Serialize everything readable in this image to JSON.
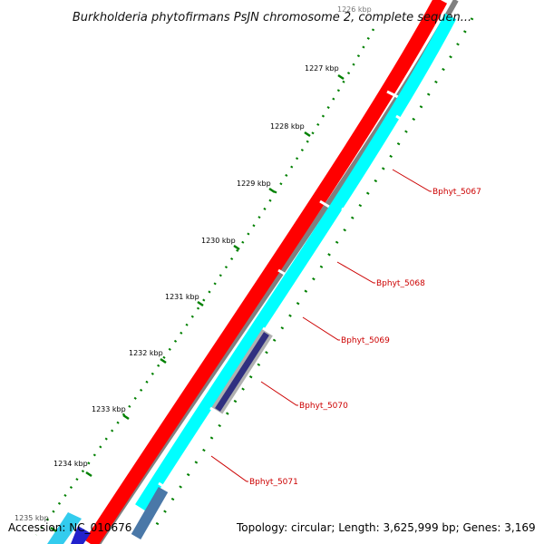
{
  "title": "Burkholderia phytofirmans PsJN chromosome 2, complete sequen...",
  "footer": {
    "accession": "Accession: NC_010676",
    "summary": "Topology: circular; Length: 3,625,999 bp; Genes: 3,169"
  },
  "ticks": [
    "1226 kbp",
    "1227 kbp",
    "1228 kbp",
    "1229 kbp",
    "1230 kbp",
    "1231 kbp",
    "1232 kbp",
    "1233 kbp",
    "1234 kbp",
    "1235 kbp"
  ],
  "gene_labels": [
    "Bphyt_5067",
    "Bphyt_5068",
    "Bphyt_5069",
    "Bphyt_5070",
    "Bphyt_5071"
  ],
  "colors": {
    "outer_ring": "#808080",
    "forward_genes": "#ff0000",
    "reverse_genes": "#00ffff",
    "grey_gene": "#b0b0b0",
    "navy_gene": "#303080",
    "tick_marks": "#008000",
    "gene_label_text": "#cc0000"
  }
}
